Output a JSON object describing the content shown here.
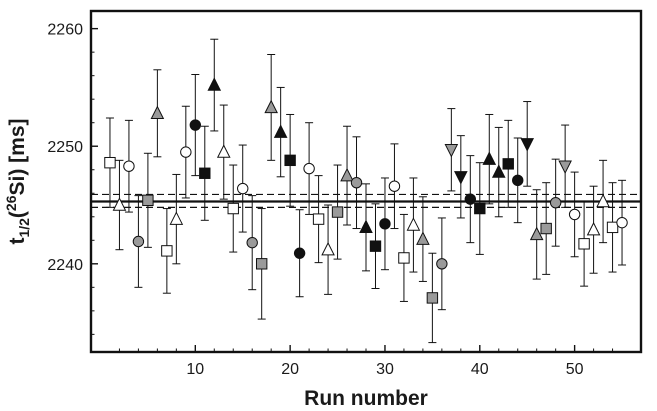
{
  "chart_data": {
    "type": "scatter",
    "title": "",
    "xlabel": "Run number",
    "ylabel": {
      "prefix": "t",
      "sub": "1/2",
      "mid": "(",
      "sup": "26",
      "suffix": "Si) [ms]"
    },
    "xlim": [
      -1,
      57
    ],
    "ylim": [
      2232.5,
      2261.5
    ],
    "x_ticks": [
      10,
      20,
      30,
      40,
      50
    ],
    "y_ticks": [
      2240,
      2250,
      2260
    ],
    "grid": false,
    "reference_lines": {
      "mean": 2245.3,
      "band": [
        2244.8,
        2245.9
      ]
    },
    "colors": {
      "black": "#111111",
      "gray": "#9a9a9a",
      "white": "#ffffff",
      "stroke": "#111111"
    },
    "points": [
      {
        "x": 1,
        "y": 2248.6,
        "err": 3.8,
        "marker": "square",
        "fill": "white"
      },
      {
        "x": 2,
        "y": 2245.0,
        "err": 3.8,
        "marker": "triangle-up",
        "fill": "white"
      },
      {
        "x": 3,
        "y": 2248.3,
        "err": 3.9,
        "marker": "circle",
        "fill": "white"
      },
      {
        "x": 4,
        "y": 2241.9,
        "err": 3.9,
        "marker": "circle",
        "fill": "gray"
      },
      {
        "x": 5,
        "y": 2245.4,
        "err": 4.0,
        "marker": "square",
        "fill": "gray"
      },
      {
        "x": 6,
        "y": 2252.8,
        "err": 3.7,
        "marker": "triangle-up",
        "fill": "gray"
      },
      {
        "x": 7,
        "y": 2241.1,
        "err": 3.6,
        "marker": "square",
        "fill": "white"
      },
      {
        "x": 8,
        "y": 2243.8,
        "err": 3.8,
        "marker": "triangle-up",
        "fill": "white"
      },
      {
        "x": 9,
        "y": 2249.5,
        "err": 3.9,
        "marker": "circle",
        "fill": "white"
      },
      {
        "x": 10,
        "y": 2251.8,
        "err": 4.3,
        "marker": "circle",
        "fill": "black"
      },
      {
        "x": 11,
        "y": 2247.7,
        "err": 4.0,
        "marker": "square",
        "fill": "black"
      },
      {
        "x": 12,
        "y": 2255.2,
        "err": 3.9,
        "marker": "triangle-up",
        "fill": "black"
      },
      {
        "x": 13,
        "y": 2249.5,
        "err": 4.0,
        "marker": "triangle-up",
        "fill": "white"
      },
      {
        "x": 14,
        "y": 2244.7,
        "err": 3.7,
        "marker": "square",
        "fill": "white"
      },
      {
        "x": 15,
        "y": 2246.4,
        "err": 3.7,
        "marker": "circle",
        "fill": "white"
      },
      {
        "x": 16,
        "y": 2241.8,
        "err": 4.0,
        "marker": "circle",
        "fill": "gray"
      },
      {
        "x": 17,
        "y": 2240.0,
        "err": 4.7,
        "marker": "square",
        "fill": "gray"
      },
      {
        "x": 18,
        "y": 2253.3,
        "err": 4.5,
        "marker": "triangle-up",
        "fill": "gray"
      },
      {
        "x": 19,
        "y": 2251.2,
        "err": 3.8,
        "marker": "triangle-up",
        "fill": "black"
      },
      {
        "x": 20,
        "y": 2248.8,
        "err": 3.9,
        "marker": "square",
        "fill": "black"
      },
      {
        "x": 21,
        "y": 2240.9,
        "err": 3.7,
        "marker": "circle",
        "fill": "black"
      },
      {
        "x": 22,
        "y": 2248.1,
        "err": 3.9,
        "marker": "circle",
        "fill": "white"
      },
      {
        "x": 23,
        "y": 2243.8,
        "err": 3.7,
        "marker": "square",
        "fill": "white"
      },
      {
        "x": 24,
        "y": 2241.2,
        "err": 3.8,
        "marker": "triangle-up",
        "fill": "white"
      },
      {
        "x": 25,
        "y": 2244.4,
        "err": 4.0,
        "marker": "square",
        "fill": "gray"
      },
      {
        "x": 26,
        "y": 2247.5,
        "err": 4.2,
        "marker": "triangle-up",
        "fill": "gray"
      },
      {
        "x": 27,
        "y": 2246.9,
        "err": 3.9,
        "marker": "circle",
        "fill": "gray"
      },
      {
        "x": 28,
        "y": 2243.1,
        "err": 3.7,
        "marker": "triangle-up",
        "fill": "black"
      },
      {
        "x": 29,
        "y": 2241.5,
        "err": 3.6,
        "marker": "square",
        "fill": "black"
      },
      {
        "x": 30,
        "y": 2243.4,
        "err": 3.9,
        "marker": "circle",
        "fill": "black"
      },
      {
        "x": 31,
        "y": 2246.6,
        "err": 3.6,
        "marker": "circle",
        "fill": "white"
      },
      {
        "x": 32,
        "y": 2240.5,
        "err": 3.7,
        "marker": "square",
        "fill": "white"
      },
      {
        "x": 33,
        "y": 2243.3,
        "err": 4.0,
        "marker": "triangle-up",
        "fill": "white"
      },
      {
        "x": 34,
        "y": 2242.1,
        "err": 3.6,
        "marker": "triangle-up",
        "fill": "gray"
      },
      {
        "x": 35,
        "y": 2237.1,
        "err": 3.8,
        "marker": "square",
        "fill": "gray"
      },
      {
        "x": 36,
        "y": 2240.0,
        "err": 3.9,
        "marker": "circle",
        "fill": "gray"
      },
      {
        "x": 37,
        "y": 2249.7,
        "err": 3.5,
        "marker": "triangle-down",
        "fill": "gray"
      },
      {
        "x": 38,
        "y": 2247.4,
        "err": 3.5,
        "marker": "triangle-down",
        "fill": "black"
      },
      {
        "x": 39,
        "y": 2245.5,
        "err": 3.7,
        "marker": "circle",
        "fill": "black"
      },
      {
        "x": 40,
        "y": 2244.7,
        "err": 3.9,
        "marker": "square",
        "fill": "black"
      },
      {
        "x": 41,
        "y": 2248.9,
        "err": 3.8,
        "marker": "triangle-up",
        "fill": "black"
      },
      {
        "x": 42,
        "y": 2247.8,
        "err": 3.8,
        "marker": "triangle-up",
        "fill": "black"
      },
      {
        "x": 43,
        "y": 2248.5,
        "err": 3.7,
        "marker": "square",
        "fill": "black"
      },
      {
        "x": 44,
        "y": 2247.1,
        "err": 3.6,
        "marker": "circle",
        "fill": "black"
      },
      {
        "x": 45,
        "y": 2250.2,
        "err": 3.6,
        "marker": "triangle-down",
        "fill": "black"
      },
      {
        "x": 46,
        "y": 2242.5,
        "err": 3.8,
        "marker": "triangle-up",
        "fill": "gray"
      },
      {
        "x": 47,
        "y": 2243.0,
        "err": 3.9,
        "marker": "square",
        "fill": "gray"
      },
      {
        "x": 48,
        "y": 2245.2,
        "err": 3.7,
        "marker": "circle",
        "fill": "gray"
      },
      {
        "x": 49,
        "y": 2248.3,
        "err": 3.5,
        "marker": "triangle-down",
        "fill": "gray"
      },
      {
        "x": 50,
        "y": 2244.2,
        "err": 3.6,
        "marker": "circle",
        "fill": "white"
      },
      {
        "x": 51,
        "y": 2241.7,
        "err": 3.6,
        "marker": "square",
        "fill": "white"
      },
      {
        "x": 52,
        "y": 2242.9,
        "err": 3.7,
        "marker": "triangle-up",
        "fill": "white"
      },
      {
        "x": 53,
        "y": 2245.3,
        "err": 3.5,
        "marker": "triangle-up",
        "fill": "white"
      },
      {
        "x": 54,
        "y": 2243.1,
        "err": 3.8,
        "marker": "square",
        "fill": "white"
      },
      {
        "x": 55,
        "y": 2243.5,
        "err": 3.6,
        "marker": "circle",
        "fill": "white"
      }
    ]
  }
}
